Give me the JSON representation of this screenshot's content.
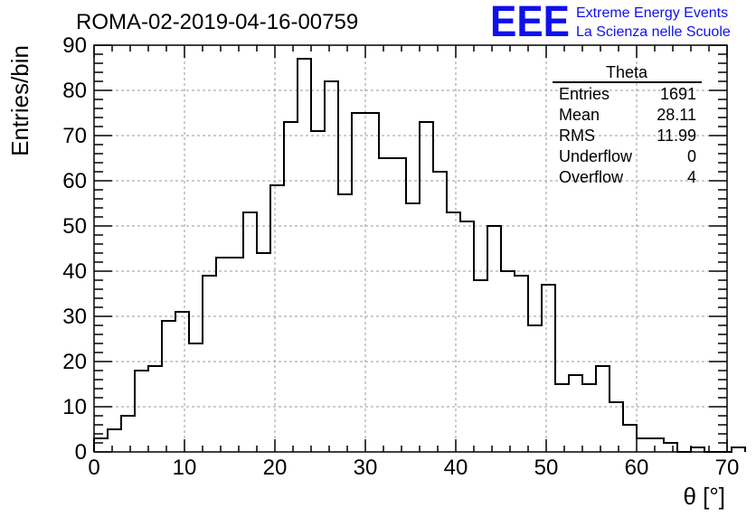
{
  "run_title": "ROMA-02-2019-04-16-00759",
  "logo": {
    "mark": "EEE",
    "line1": "Extreme Energy Events",
    "line2": "La Scienza nelle Scuole",
    "color": "#1010ee"
  },
  "stats_box": {
    "name": "Theta",
    "rows": [
      {
        "label": "Entries",
        "value": "1691"
      },
      {
        "label": "Mean",
        "value": "28.11"
      },
      {
        "label": "RMS",
        "value": "11.99"
      },
      {
        "label": "Underflow",
        "value": "0"
      },
      {
        "label": "Overflow",
        "value": "4"
      }
    ]
  },
  "chart_data": {
    "type": "bar",
    "style": "step-histogram",
    "xlabel": "θ [°]",
    "ylabel": "Entries/bin",
    "xlim": [
      0,
      70
    ],
    "ylim": [
      0,
      90
    ],
    "bin_width": 1.5,
    "grid": true,
    "x_ticks": [
      0,
      10,
      20,
      30,
      40,
      50,
      60,
      70
    ],
    "y_ticks": [
      0,
      10,
      20,
      30,
      40,
      50,
      60,
      70,
      80,
      90
    ],
    "bin_edges_start": 0,
    "values": [
      3,
      5,
      8,
      18,
      19,
      29,
      31,
      24,
      39,
      43,
      43,
      53,
      44,
      59,
      73,
      87,
      71,
      82,
      57,
      75,
      75,
      65,
      65,
      55,
      73,
      62,
      53,
      51,
      38,
      50,
      40,
      39,
      28,
      37,
      15,
      17,
      15,
      19,
      11,
      6,
      3,
      3,
      2,
      0,
      1,
      0,
      0,
      1
    ]
  }
}
